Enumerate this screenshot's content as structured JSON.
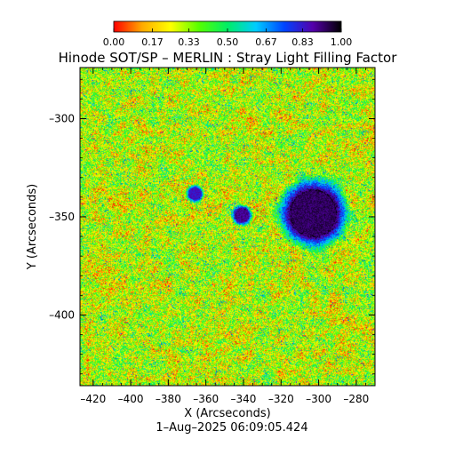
{
  "chart_data": {
    "type": "heatmap",
    "title": "Hinode SOT/SP – MERLIN : Stray Light Filling Factor",
    "xlabel": "X (Arcseconds)",
    "ylabel": "Y (Arcseconds)",
    "date_label": "1–Aug–2025 06:09:05.424",
    "xlim": [
      -427,
      -270
    ],
    "ylim": [
      -436,
      -274
    ],
    "xticks": [
      -420,
      -400,
      -380,
      -360,
      -340,
      -320,
      -300,
      -280
    ],
    "xtick_labels": [
      "–420",
      "–400",
      "–380",
      "–360",
      "–340",
      "–320",
      "–300",
      "–280"
    ],
    "yticks": [
      -300,
      -350,
      -400
    ],
    "ytick_labels": [
      "–300",
      "–350",
      "–400"
    ],
    "colorbar": {
      "min": 0.0,
      "max": 1.0,
      "tick_values": [
        0.0,
        0.17,
        0.33,
        0.5,
        0.67,
        0.83,
        1.0
      ],
      "tick_labels": [
        "0.00",
        "0.17",
        "0.33",
        "0.50",
        "0.67",
        "0.83",
        "1.00"
      ],
      "colormap": [
        "#ff0000",
        "#ffaa00",
        "#ffff00",
        "#55ff00",
        "#00ee66",
        "#00ccff",
        "#0044ff",
        "#5500aa",
        "#000000"
      ]
    },
    "features": [
      {
        "label": "sunspot",
        "x": -303,
        "y": -348,
        "r": 12,
        "value": 0.97
      },
      {
        "label": "pore",
        "x": -341,
        "y": -349,
        "r": 3.5,
        "value": 0.93
      },
      {
        "label": "pore",
        "x": -366,
        "y": -338,
        "r": 3,
        "value": 0.88
      }
    ],
    "grid": false
  }
}
